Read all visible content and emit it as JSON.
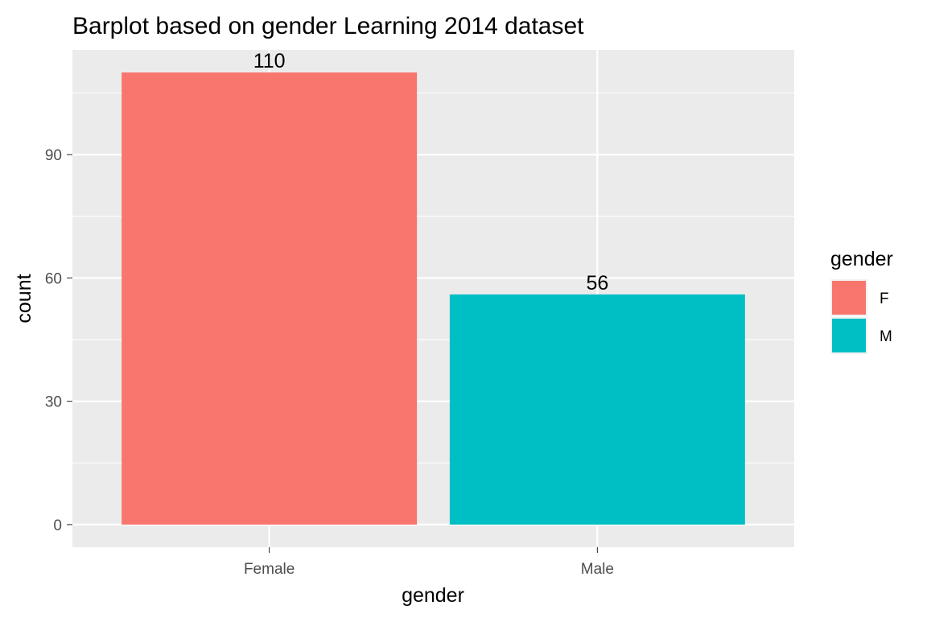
{
  "chart_data": {
    "type": "bar",
    "title": "Barplot based on gender Learning 2014 dataset",
    "xlabel": "gender",
    "ylabel": "count",
    "categories": [
      "Female",
      "Male"
    ],
    "values": [
      110,
      56
    ],
    "data_labels": [
      "110",
      "56"
    ],
    "colors": [
      "#F8766D",
      "#00BFC4"
    ],
    "ylim": [
      -5.5,
      115.5
    ],
    "yticks": [
      0,
      30,
      60,
      90
    ],
    "ytick_labels": [
      "0",
      "30",
      "60",
      "90"
    ],
    "grid": true,
    "legend": {
      "title": "gender",
      "placement": "right",
      "entries": [
        {
          "label": "F",
          "color": "#F8766D"
        },
        {
          "label": "M",
          "color": "#00BFC4"
        }
      ]
    }
  }
}
